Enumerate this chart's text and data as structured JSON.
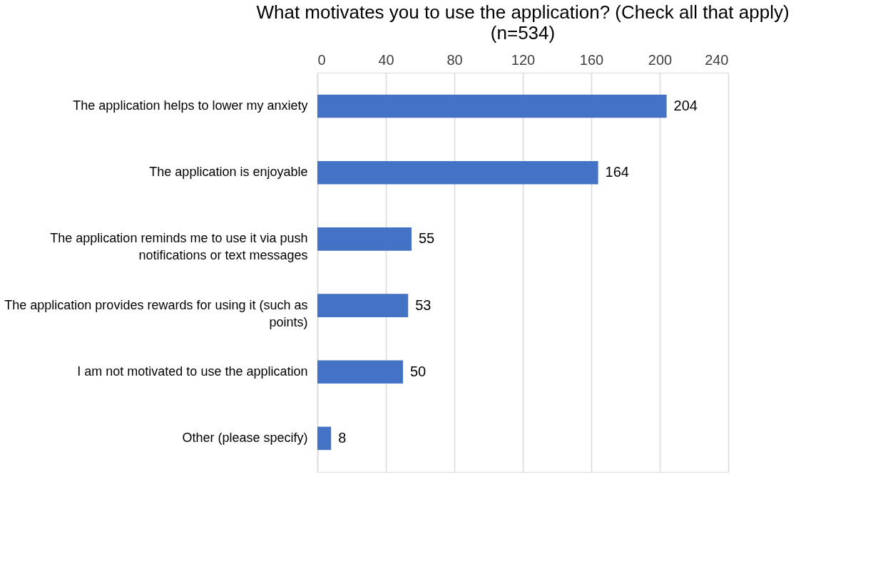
{
  "chart_data": {
    "type": "bar",
    "orientation": "horizontal",
    "title": "What motivates you to use the application? (Check all that apply)",
    "subtitle": "(n=534)",
    "categories": [
      "The application helps to lower my anxiety",
      "The application is enjoyable",
      "The application reminds me to use it via push notifications or text messages",
      "The application provides rewards for using it (such as points)",
      "I am not motivated to use the application",
      "Other (please specify)"
    ],
    "values": [
      204,
      164,
      55,
      53,
      50,
      8
    ],
    "color": "#4472c4",
    "xlim": [
      0,
      240
    ],
    "xticks": [
      0,
      40,
      80,
      120,
      160,
      200,
      240
    ],
    "grid": "x",
    "data_labels": true
  }
}
